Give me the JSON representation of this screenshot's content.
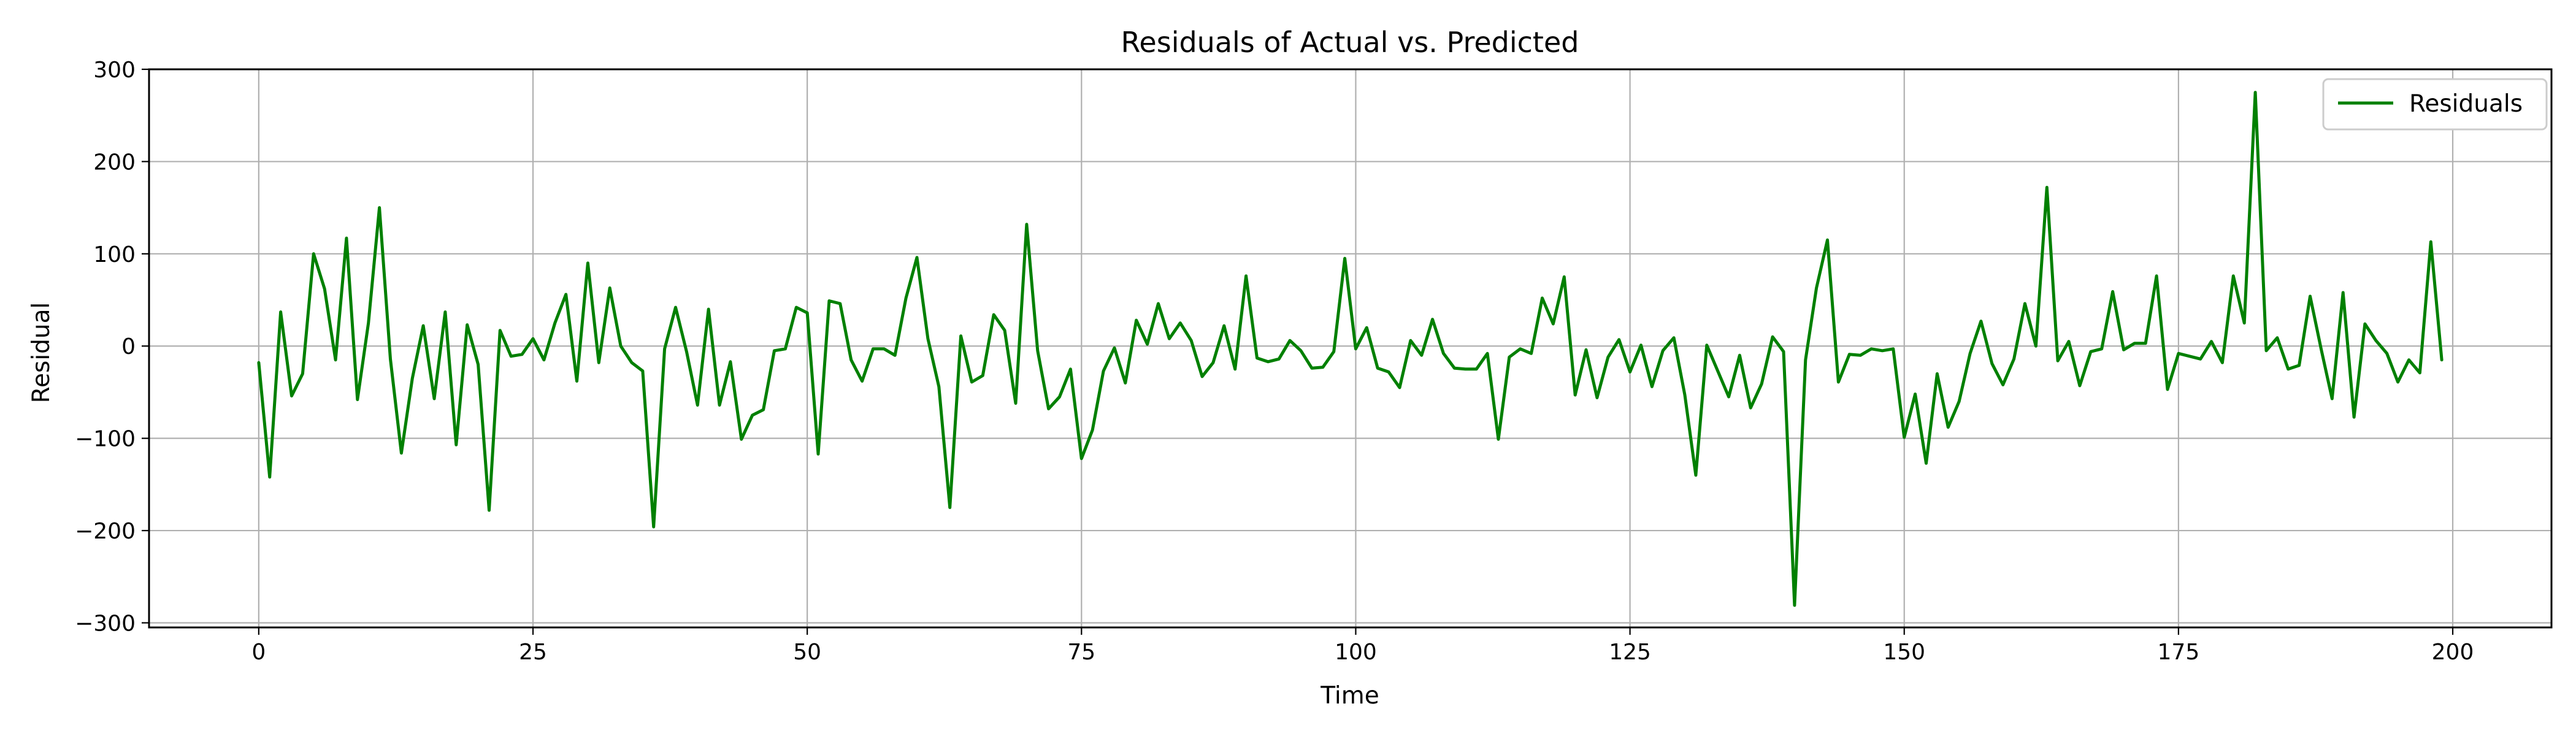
{
  "chart_data": {
    "type": "line",
    "title": "Residuals of Actual vs. Predicted",
    "xlabel": "Time",
    "ylabel": "Residual",
    "xlim": [
      -10,
      209
    ],
    "ylim": [
      -305,
      300
    ],
    "xticks": [
      0,
      25,
      50,
      75,
      100,
      125,
      150,
      175,
      200
    ],
    "yticks": [
      -300,
      -200,
      -100,
      0,
      100,
      200,
      300
    ],
    "xtick_labels": [
      "0",
      "25",
      "50",
      "75",
      "100",
      "125",
      "150",
      "175",
      "200"
    ],
    "ytick_labels": [
      "−300",
      "−200",
      "−100",
      "0",
      "100",
      "200",
      "300"
    ],
    "grid": true,
    "legend": {
      "placement": "top-right",
      "entries": [
        "Residuals"
      ]
    },
    "series": [
      {
        "name": "Residuals",
        "color": "#008000",
        "x_start": 0,
        "x_step": 1,
        "values": [
          -18,
          -142,
          37,
          -54,
          -30,
          100,
          62,
          -15,
          117,
          -58,
          25,
          150,
          -14,
          -116,
          -35,
          22,
          -57,
          37,
          -107,
          23,
          -20,
          -178,
          17,
          -11,
          -9,
          8,
          -15,
          25,
          56,
          -38,
          90,
          -18,
          63,
          0,
          -18,
          -27,
          -196,
          -3,
          42,
          -6,
          -64,
          40,
          -64,
          -17,
          -101,
          -75,
          -69,
          -5,
          -3,
          42,
          36,
          -117,
          49,
          46,
          -15,
          -38,
          -3,
          -3,
          -10,
          52,
          96,
          8,
          -44,
          -175,
          11,
          -39,
          -32,
          34,
          17,
          -62,
          132,
          -5,
          -68,
          -55,
          -25,
          -122,
          -91,
          -27,
          -2,
          -40,
          28,
          2,
          46,
          8,
          25,
          6,
          -33,
          -18,
          22,
          -25,
          76,
          -13,
          -17,
          -14,
          6,
          -5,
          -24,
          -23,
          -6,
          95,
          -3,
          20,
          -24,
          -28,
          -45,
          6,
          -10,
          29,
          -8,
          -24,
          -25,
          -25,
          -8,
          -101,
          -12,
          -3,
          -8,
          52,
          24,
          75,
          -53,
          -4,
          -56,
          -12,
          7,
          -28,
          1,
          -44,
          -5,
          9,
          -53,
          -140,
          1,
          -27,
          -55,
          -10,
          -67,
          -41,
          10,
          -6,
          -281,
          -15,
          63,
          115,
          -39,
          -9,
          -10,
          -3,
          -5,
          -3,
          -99,
          -52,
          -127,
          -30,
          -88,
          -60,
          -8,
          27,
          -19,
          -42,
          -14,
          46,
          0,
          172,
          -16,
          5,
          -43,
          -6,
          -3,
          59,
          -4,
          3,
          3,
          76,
          -47,
          -8,
          -11,
          -14,
          5,
          -18,
          76,
          25,
          275,
          -5,
          9,
          -25,
          -21,
          54,
          -3,
          -57,
          58,
          -77,
          24,
          6,
          -8,
          -39,
          -15,
          -29,
          113,
          -15
        ]
      }
    ]
  }
}
